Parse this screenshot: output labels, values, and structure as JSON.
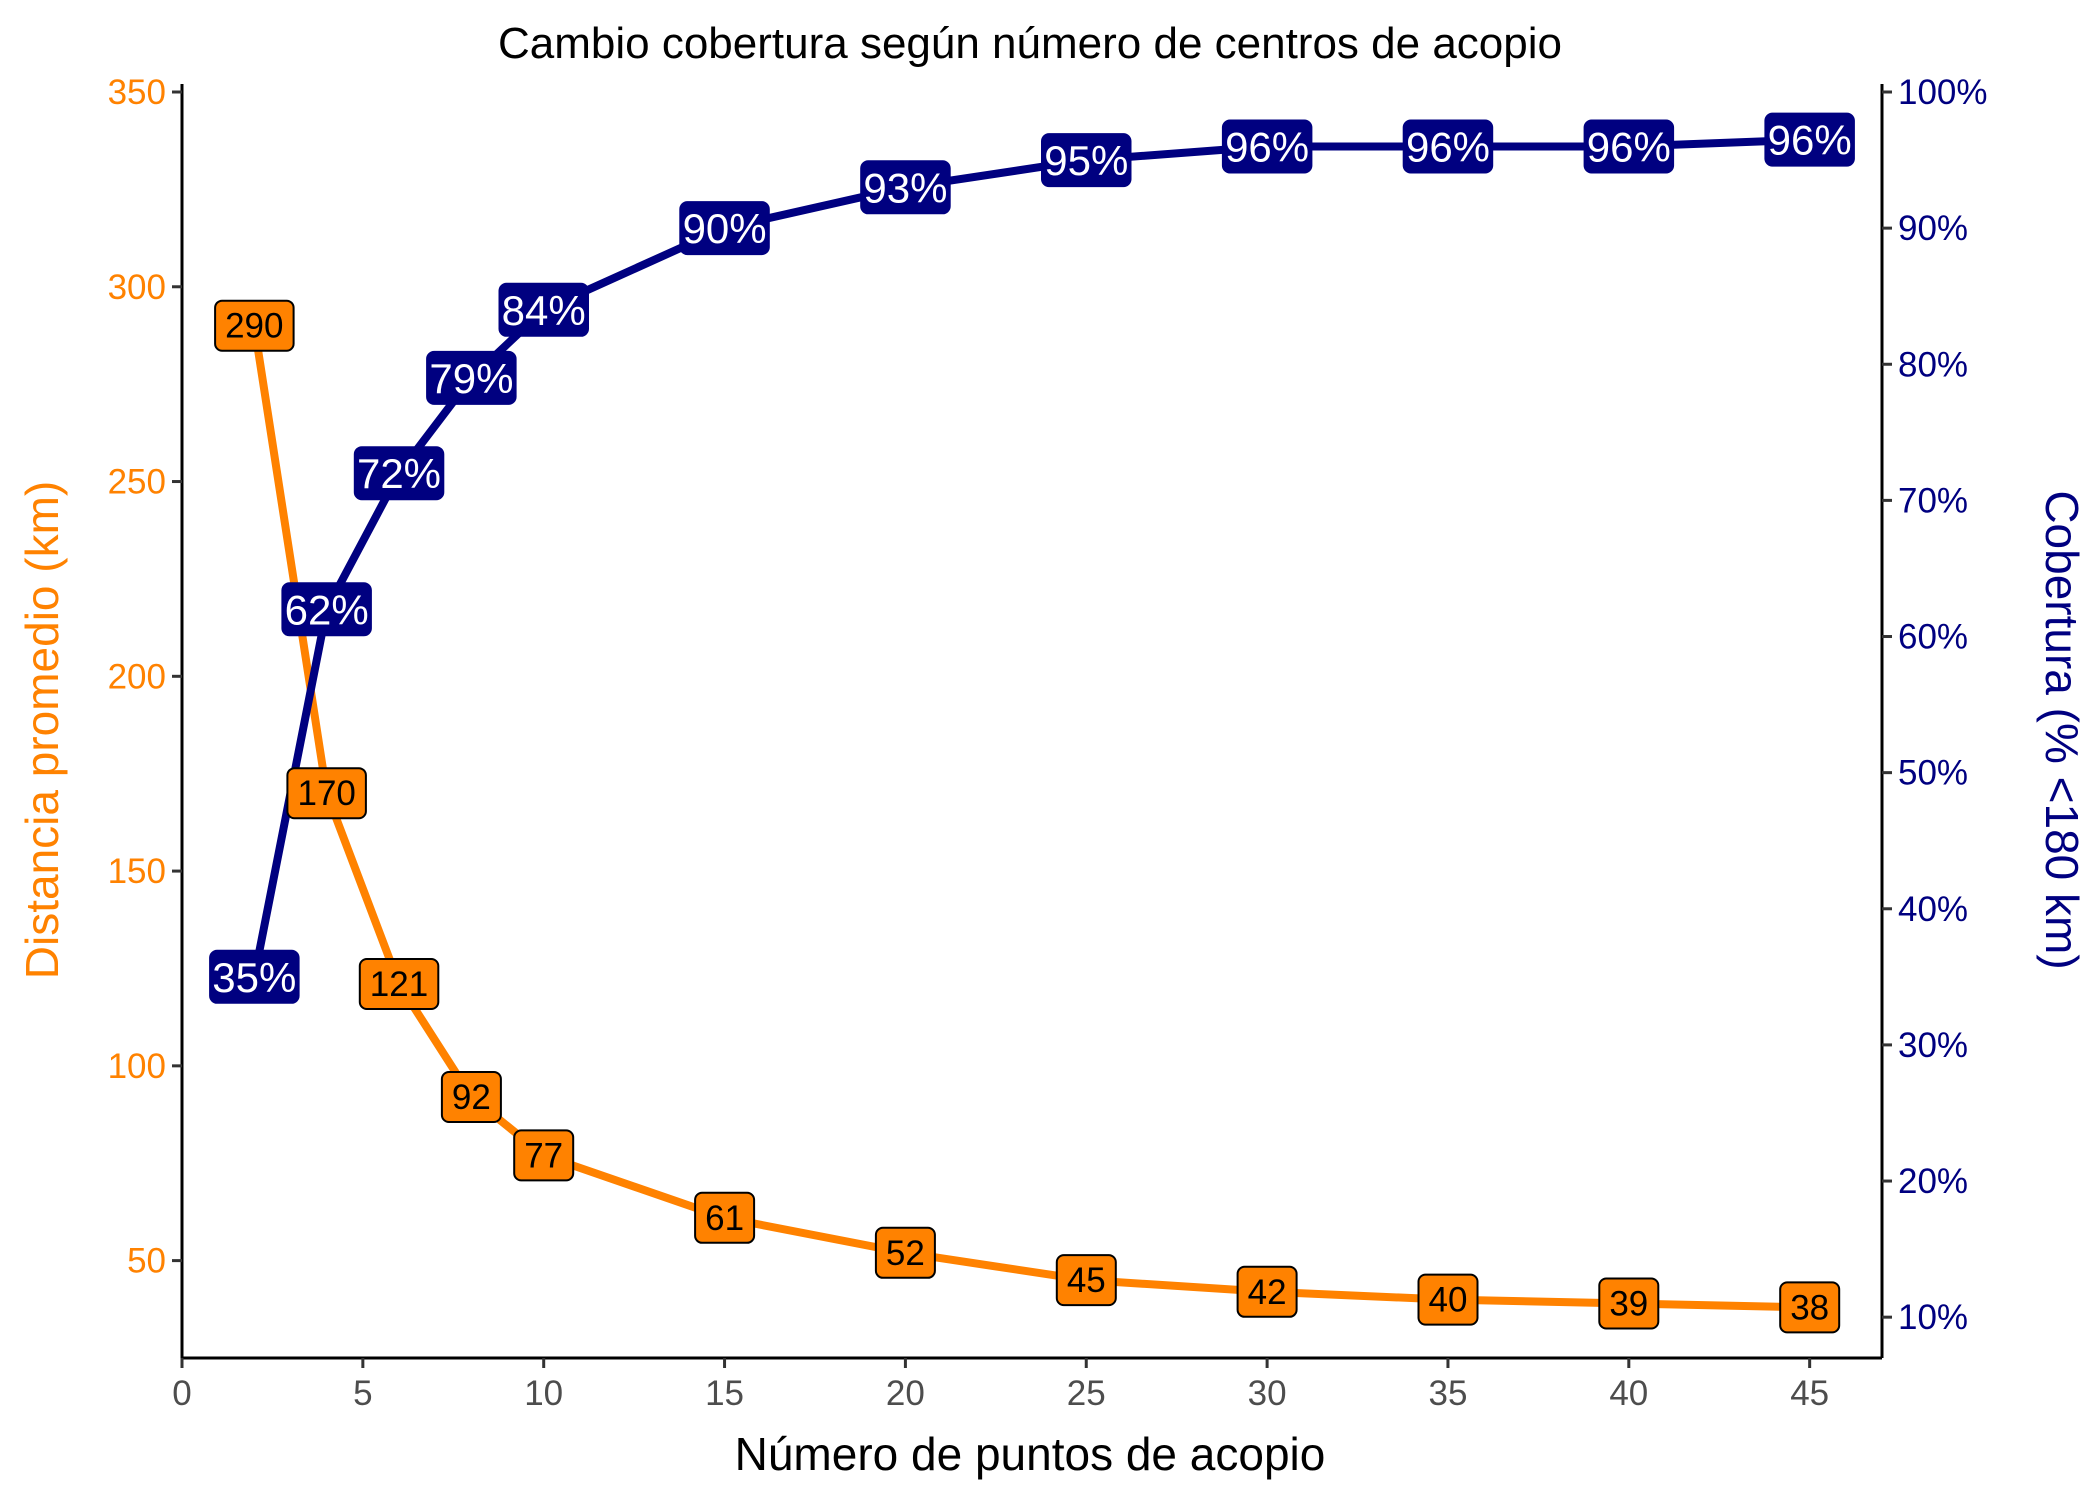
{
  "chart_data": {
    "type": "line",
    "title": "Cambio cobertura según número de centros de acopio",
    "xlabel": "Número de puntos de acopio",
    "ylabel_left": "Distancia promedio (km)",
    "ylabel_right": "Cobertura (% <180 km)",
    "xlim": [
      0,
      47
    ],
    "ylim_left": [
      25,
      350
    ],
    "ylim_right": [
      0.07,
      1.0
    ],
    "x_ticks": [
      0,
      5,
      10,
      15,
      20,
      25,
      30,
      35,
      40,
      45
    ],
    "y_left_ticks": [
      50,
      100,
      150,
      200,
      250,
      300,
      350
    ],
    "y_right_ticks": [
      "10%",
      "20%",
      "30%",
      "40%",
      "50%",
      "60%",
      "70%",
      "80%",
      "90%",
      "100%"
    ],
    "y_right_tick_values": [
      0.1,
      0.2,
      0.3,
      0.4,
      0.5,
      0.6,
      0.7,
      0.8,
      0.9,
      1.0
    ],
    "x": [
      2,
      4,
      6,
      8,
      10,
      15,
      20,
      25,
      30,
      35,
      40,
      45
    ],
    "series": [
      {
        "axis": "left",
        "color": "#FF8200",
        "values": [
          290,
          170,
          121,
          92,
          77,
          61,
          52,
          45,
          42,
          40,
          39,
          38
        ],
        "labels": [
          "290",
          "170",
          "121",
          "92",
          "77",
          "61",
          "52",
          "45",
          "42",
          "40",
          "39",
          "38"
        ]
      },
      {
        "axis": "right",
        "color": "#000080",
        "values": [
          0.35,
          0.62,
          0.72,
          0.79,
          0.84,
          0.9,
          0.93,
          0.95,
          0.96,
          0.96,
          0.96,
          0.965
        ],
        "labels": [
          "35%",
          "62%",
          "72%",
          "79%",
          "84%",
          "90%",
          "93%",
          "95%",
          "96%",
          "96%",
          "96%",
          "96%"
        ]
      }
    ],
    "grid": false,
    "colors": {
      "left_axis": "#FF8200",
      "right_axis": "#000080",
      "left_label_fill": "#FF8200",
      "right_label_fill": "#000080"
    }
  }
}
